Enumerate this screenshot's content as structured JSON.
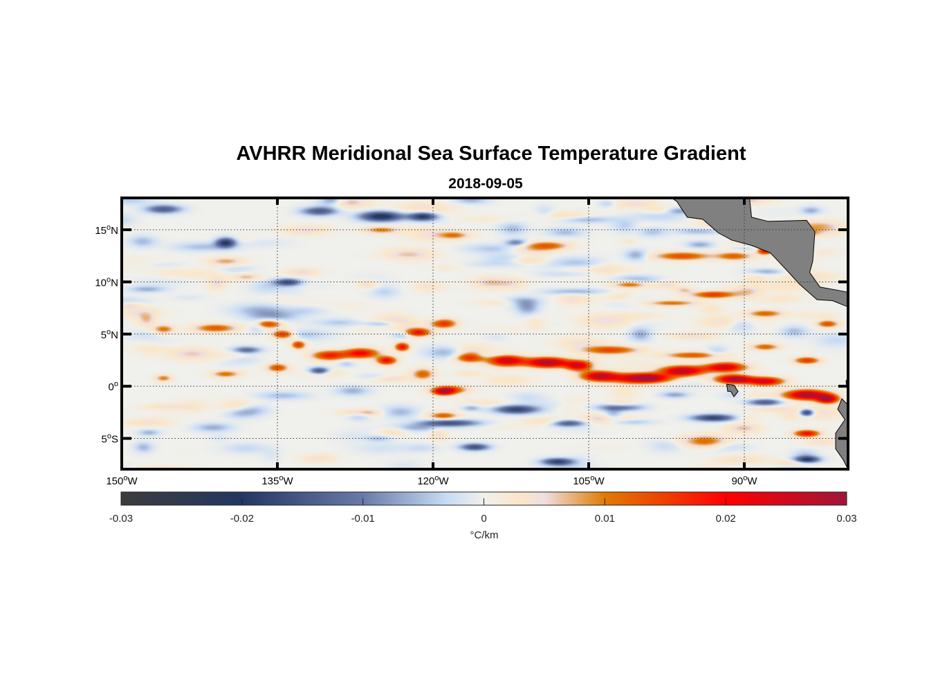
{
  "chart_data": {
    "type": "heatmap",
    "title": "AVHRR Meridional Sea Surface Temperature Gradient",
    "subtitle": "2018-09-05",
    "xlabel": "",
    "ylabel": "",
    "x_range_deg_lon": [
      -150,
      -80
    ],
    "y_range_deg_lat": [
      -8,
      18
    ],
    "x_ticks": [
      {
        "value": -150,
        "label": "150",
        "suffix": "W"
      },
      {
        "value": -135,
        "label": "135",
        "suffix": "W"
      },
      {
        "value": -120,
        "label": "120",
        "suffix": "W"
      },
      {
        "value": -105,
        "label": "105",
        "suffix": "W"
      },
      {
        "value": -90,
        "label": "90",
        "suffix": "W"
      }
    ],
    "y_ticks": [
      {
        "value": 15,
        "label": "15",
        "suffix": "N"
      },
      {
        "value": 10,
        "label": "10",
        "suffix": "N"
      },
      {
        "value": 5,
        "label": "5",
        "suffix": "N"
      },
      {
        "value": 0,
        "label": "0",
        "suffix": ""
      },
      {
        "value": -5,
        "label": "5",
        "suffix": "S"
      }
    ],
    "grid": true,
    "land_color": "#808080",
    "colorbar": {
      "location": "bottom",
      "range": [
        -0.03,
        0.03
      ],
      "ticks": [
        {
          "value": -0.03,
          "label": "-0.03"
        },
        {
          "value": -0.02,
          "label": "-0.02"
        },
        {
          "value": -0.01,
          "label": "-0.01"
        },
        {
          "value": 0,
          "label": "0"
        },
        {
          "value": 0.01,
          "label": "0.01"
        },
        {
          "value": 0.02,
          "label": "0.02"
        },
        {
          "value": 0.03,
          "label": "0.03"
        }
      ],
      "unit_label": "°C/km",
      "colormap": [
        {
          "value": -0.03,
          "color": "#3c3c3c"
        },
        {
          "value": -0.02,
          "color": "#233763"
        },
        {
          "value": -0.01,
          "color": "#6a7aa8"
        },
        {
          "value": -0.003,
          "color": "#c8dcf5"
        },
        {
          "value": 0,
          "color": "#f0f0ec"
        },
        {
          "value": 0.003,
          "color": "#fbe6c8"
        },
        {
          "value": 0.005,
          "color": "#eedfe2"
        },
        {
          "value": 0.01,
          "color": "#e07b00"
        },
        {
          "value": 0.02,
          "color": "#ff0000"
        },
        {
          "value": 0.03,
          "color": "#a0153a"
        }
      ]
    },
    "features": [
      {
        "name": "equatorial-front-west",
        "lon": [
          -142,
          -135
        ],
        "lat": [
          5.5,
          4.0
        ],
        "value": 0.014
      },
      {
        "name": "equatorial-front-mid1",
        "lon": [
          -133,
          -126
        ],
        "lat": [
          3.0,
          3.5
        ],
        "value": 0.018
      },
      {
        "name": "equatorial-front-mid2",
        "lon": [
          -124,
          -120
        ],
        "lat": [
          3.5,
          5.8
        ],
        "value": 0.016
      },
      {
        "name": "equatorial-front-east",
        "lon": [
          -114,
          -95
        ],
        "lat": [
          2.0,
          0.5
        ],
        "value": 0.028
      },
      {
        "name": "equatorial-front-far-east",
        "lon": [
          -95,
          -82
        ],
        "lat": [
          1.0,
          -1.0
        ],
        "value": 0.027
      },
      {
        "name": "cold-patch-north",
        "lon": [
          -128,
          -121
        ],
        "lat": [
          17,
          16
        ],
        "value": -0.02
      },
      {
        "name": "cold-patch-south",
        "lon": [
          -123,
          -104
        ],
        "lat": [
          -2,
          -4.5
        ],
        "value": -0.018
      }
    ]
  }
}
